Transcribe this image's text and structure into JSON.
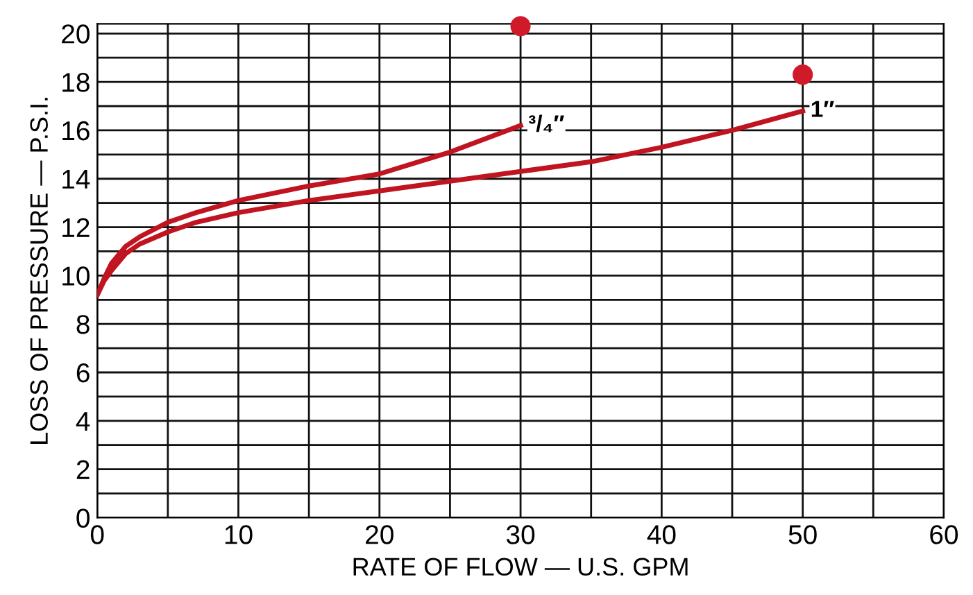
{
  "chart_data": {
    "type": "line",
    "xlabel": "RATE OF FLOW — U.S. GPM",
    "ylabel": "LOSS OF PRESSURE — P.S.I.",
    "series": [
      {
        "name": "³/₄″",
        "color": "#c01420",
        "x": [
          0,
          0.5,
          1,
          2,
          3,
          5,
          7,
          10,
          15,
          20,
          25,
          30
        ],
        "values": [
          9.2,
          9.9,
          10.5,
          11.2,
          11.6,
          12.2,
          12.6,
          13.1,
          13.7,
          14.2,
          15.1,
          16.2
        ]
      },
      {
        "name": "1″",
        "color": "#c01420",
        "x": [
          0,
          0.5,
          1,
          2,
          3,
          5,
          7,
          10,
          15,
          20,
          25,
          30,
          35,
          40,
          45,
          50
        ],
        "values": [
          9.2,
          9.8,
          10.2,
          10.9,
          11.3,
          11.8,
          12.2,
          12.6,
          13.1,
          13.5,
          13.9,
          14.3,
          14.7,
          15.3,
          16.0,
          16.8
        ]
      },
      {
        "type": "scatter",
        "color": "#d01a2a",
        "marker": "circle",
        "x": [
          30,
          50
        ],
        "values": [
          20.3,
          18.3
        ]
      }
    ],
    "xlim": [
      0,
      60
    ],
    "ylim": [
      0,
      20.4
    ],
    "xticks": [
      0,
      {
        "value": 5,
        "label": null
      },
      10,
      {
        "value": 15,
        "label": null
      },
      20,
      {
        "value": 25,
        "label": null
      },
      30,
      {
        "value": 35,
        "label": null
      },
      40,
      {
        "value": 45,
        "label": null
      },
      50,
      {
        "value": 55,
        "label": null
      },
      60
    ],
    "yticks": [
      0,
      {
        "value": 1,
        "label": null
      },
      2,
      {
        "value": 3,
        "label": null
      },
      4,
      {
        "value": 5,
        "label": null
      },
      6,
      {
        "value": 7,
        "label": null
      },
      8,
      {
        "value": 9,
        "label": null
      },
      10,
      {
        "value": 11,
        "label": null
      },
      12,
      {
        "value": 13,
        "label": null
      },
      14,
      {
        "value": 15,
        "label": null
      },
      16,
      {
        "value": 17,
        "label": null
      },
      18,
      {
        "value": 19,
        "label": null
      },
      20
    ],
    "grid": true,
    "line_style": "solid"
  }
}
